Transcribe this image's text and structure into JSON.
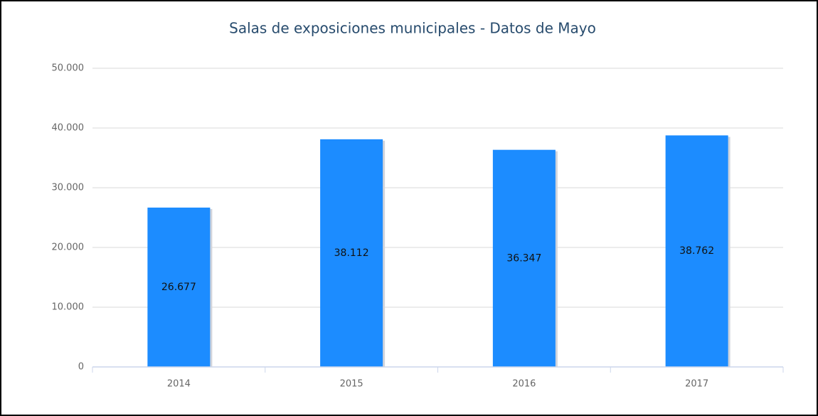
{
  "chart_data": {
    "type": "bar",
    "title": "Salas de exposiciones municipales - Datos de Mayo",
    "categories": [
      "2014",
      "2015",
      "2016",
      "2017"
    ],
    "values": [
      26677,
      38112,
      36347,
      38762
    ],
    "value_labels": [
      "26.677",
      "38.112",
      "36.347",
      "38.762"
    ],
    "color": "#1c8cff",
    "ylim": [
      0,
      50000
    ],
    "yticks": [
      0,
      {
        "value": 10000,
        "label": "10.000"
      },
      {
        "value": 20000,
        "label": "20.000"
      },
      {
        "value": 30000,
        "label": "30.000"
      },
      {
        "value": 40000,
        "label": "40.000"
      },
      {
        "value": 50000,
        "label": "50.000"
      }
    ],
    "grid": true
  }
}
